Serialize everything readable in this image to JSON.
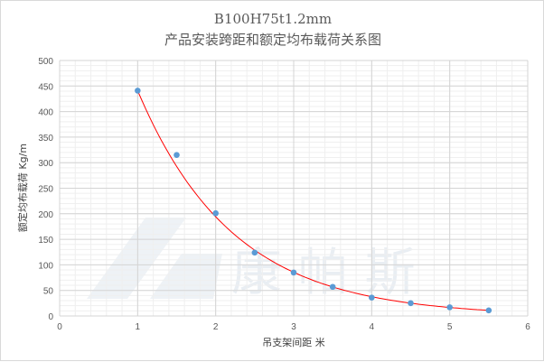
{
  "chart_data": {
    "type": "scatter",
    "title": "B100H75t1.2mm",
    "subtitle": "产品安装跨距和额定均布载荷关系图",
    "xlabel": "吊支架间距 米",
    "ylabel": "额定均布载荷 Kg/m",
    "xlim": [
      0,
      6
    ],
    "ylim": [
      0,
      500
    ],
    "x_ticks": [
      0,
      1,
      2,
      3,
      4,
      5,
      6
    ],
    "y_ticks": [
      0,
      50,
      100,
      150,
      200,
      250,
      300,
      350,
      400,
      450,
      500
    ],
    "grid": true,
    "legend": "none",
    "series": [
      {
        "x": [
          1,
          1.5,
          2,
          2.5,
          3,
          3.5,
          4,
          4.5,
          5,
          5.5
        ],
        "y": [
          441,
          315,
          201,
          124,
          85,
          57,
          36,
          25,
          17,
          11
        ],
        "color": "#5b9bd5"
      }
    ],
    "trendline": {
      "type": "exponential",
      "a": 1001,
      "b": -0.82,
      "x_range": [
        1,
        5.5
      ],
      "color": "#ff0000"
    },
    "watermark": "康帕斯"
  }
}
